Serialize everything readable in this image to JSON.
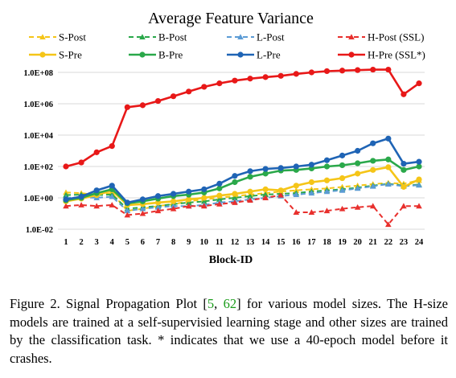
{
  "chart_data": {
    "type": "line",
    "title": "Average Feature Variance",
    "xlabel": "Block-ID",
    "ylabel": "",
    "yscale": "log",
    "ylim": [
      0.01,
      100000000
    ],
    "yticks": [
      "1.0E-02",
      "1.0E+00",
      "1.0E+02",
      "1.0E+04",
      "1.0E+06",
      "1.0E+08"
    ],
    "grid": "horizontal",
    "legend_placement": "top",
    "categories": [
      "1",
      "2",
      "3",
      "4",
      "5",
      "6",
      "7",
      "8",
      "9",
      "10",
      "11",
      "12",
      "13",
      "14",
      "15",
      "16",
      "17",
      "18",
      "19",
      "20",
      "21",
      "22",
      "23",
      "24"
    ],
    "series": [
      {
        "name": "S-Post",
        "color": "#f5c518",
        "dashed": true,
        "marker": "triangle",
        "values": [
          2.2,
          2.0,
          1.5,
          2.0,
          0.15,
          0.2,
          0.3,
          0.4,
          0.6,
          0.8,
          1.0,
          1.3,
          1.6,
          2.0,
          2.5,
          3.0,
          3.5,
          4.0,
          5.0,
          6.0,
          7.5,
          9.0,
          8.0,
          13.0
        ]
      },
      {
        "name": "B-Post",
        "color": "#2aa84a",
        "dashed": true,
        "marker": "triangle",
        "values": [
          1.5,
          1.6,
          1.5,
          1.6,
          0.2,
          0.25,
          0.3,
          0.4,
          0.5,
          0.6,
          0.8,
          1.0,
          1.3,
          1.6,
          1.8,
          2.0,
          2.5,
          3.0,
          3.5,
          4.5,
          6.0,
          8.0,
          6.0,
          7.0
        ]
      },
      {
        "name": "L-Post",
        "color": "#5b9bd5",
        "dashed": true,
        "marker": "triangle",
        "values": [
          1.0,
          1.1,
          1.0,
          1.2,
          0.15,
          0.2,
          0.25,
          0.3,
          0.3,
          0.35,
          0.5,
          0.6,
          0.8,
          1.0,
          1.3,
          1.6,
          2.0,
          2.5,
          3.0,
          4.0,
          5.5,
          7.5,
          5.5,
          6.5
        ]
      },
      {
        "name": "H-Post (SSL)",
        "color": "#e8302d",
        "dashed": true,
        "marker": "triangle",
        "values": [
          0.3,
          0.35,
          0.3,
          0.35,
          0.08,
          0.1,
          0.15,
          0.2,
          0.3,
          0.3,
          0.4,
          0.5,
          0.7,
          1.0,
          1.5,
          0.12,
          0.12,
          0.15,
          0.2,
          0.25,
          0.3,
          0.02,
          0.3,
          0.3
        ]
      },
      {
        "name": "S-Pre",
        "color": "#f5c518",
        "dashed": false,
        "marker": "circle",
        "values": [
          0.6,
          0.9,
          1.5,
          3.0,
          0.35,
          0.4,
          0.5,
          0.6,
          0.8,
          1.0,
          1.4,
          1.8,
          2.5,
          3.5,
          3.0,
          6.0,
          10.0,
          13.0,
          18.0,
          35.0,
          60.0,
          90.0,
          5.0,
          15.0
        ]
      },
      {
        "name": "B-Pre",
        "color": "#2aa84a",
        "dashed": false,
        "marker": "circle",
        "values": [
          0.7,
          1.0,
          2.0,
          3.5,
          0.45,
          0.6,
          0.9,
          1.3,
          1.6,
          2.2,
          4.0,
          10.0,
          22.0,
          35.0,
          55.0,
          60.0,
          75.0,
          100.0,
          120.0,
          160.0,
          230.0,
          280.0,
          60.0,
          100.0
        ]
      },
      {
        "name": "L-Pre",
        "color": "#1f64b5",
        "dashed": false,
        "marker": "circle",
        "values": [
          0.8,
          1.2,
          3.0,
          6.0,
          0.5,
          0.8,
          1.3,
          1.8,
          2.5,
          3.5,
          8.0,
          25.0,
          50.0,
          70.0,
          80.0,
          100.0,
          130.0,
          250.0,
          500.0,
          1000.0,
          3000.0,
          6000.0,
          150.0,
          200.0
        ]
      },
      {
        "name": "H-Pre (SSL*)",
        "color": "#e81818",
        "dashed": false,
        "marker": "circle",
        "values": [
          100.0,
          180.0,
          800.0,
          2000.0,
          600000.0,
          800000.0,
          1500000.0,
          3000000.0,
          6000000.0,
          12000000.0,
          20000000.0,
          30000000.0,
          40000000.0,
          50000000.0,
          60000000.0,
          80000000.0,
          100000000.0,
          120000000.0,
          130000000.0,
          140000000.0,
          150000000.0,
          150000000.0,
          4000000.0,
          20000000.0
        ]
      }
    ]
  },
  "caption": {
    "prefix": "Figure 2. Signal Propagation Plot [",
    "ref1": "5",
    "sep": ", ",
    "ref2": "62",
    "suffix": "] for various model sizes. The H-size models are trained at a self-supervisied learning stage and other sizes are trained by the classification task.  * indicates that we use a 40-epoch model before it crashes."
  }
}
